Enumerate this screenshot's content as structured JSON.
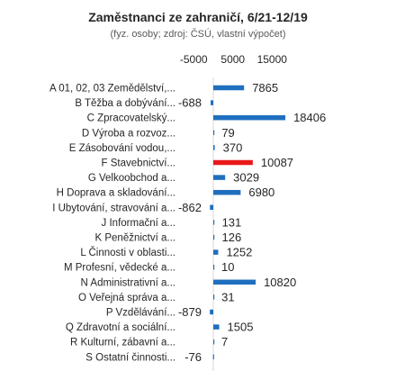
{
  "chart_data": {
    "type": "bar",
    "orientation": "horizontal",
    "title": "Zaměstnanci ze zahraničí, 6/21-12/19",
    "subtitle": "(fyz. osoby; zdroj: ČSÚ, vlastní výpočet)",
    "xlim": [
      -5000,
      20000
    ],
    "x_ticks": [
      -5000,
      5000,
      15000
    ],
    "x_tick_labels": [
      "-5000",
      "5000",
      "15000"
    ],
    "axis_position": "top",
    "grid": false,
    "legend": "none",
    "categories": [
      "A 01, 02, 03 Zemědělství,...",
      "B Těžba a dobývání...",
      "C Zpracovatelský...",
      "D Výroba a rozvoz...",
      "E Zásobování vodou,...",
      "F Stavebnictví...",
      "G Velkoobchod a...",
      "H Doprava a skladování...",
      "I Ubytování, stravování a...",
      "J Informační a...",
      "K Peněžnictví a...",
      "L Činnosti v oblasti...",
      "M Profesní, vědecké a...",
      "N Administrativní a...",
      "O Veřejná správa a...",
      "P Vzdělávání...",
      "Q Zdravotní a sociální...",
      "R Kulturní, zábavní a...",
      "S Ostatní činnosti..."
    ],
    "values": [
      7865,
      -688,
      18406,
      79,
      370,
      10087,
      3029,
      6980,
      -862,
      131,
      126,
      1252,
      10,
      10820,
      31,
      -879,
      1505,
      7,
      -76
    ],
    "value_labels": [
      "7865",
      "-688",
      "18406",
      "79",
      "370",
      "10087",
      "3029",
      "6980",
      "-862",
      "131",
      "126",
      "1252",
      "10",
      "10820",
      "31",
      "-879",
      "1505",
      "7",
      "-76"
    ],
    "highlight_index": 5,
    "colors": {
      "default": "#1f6fbf",
      "highlight": "#e8191a",
      "text": "#262626",
      "muted": "#595959",
      "axis": "#d9d9d9"
    }
  }
}
